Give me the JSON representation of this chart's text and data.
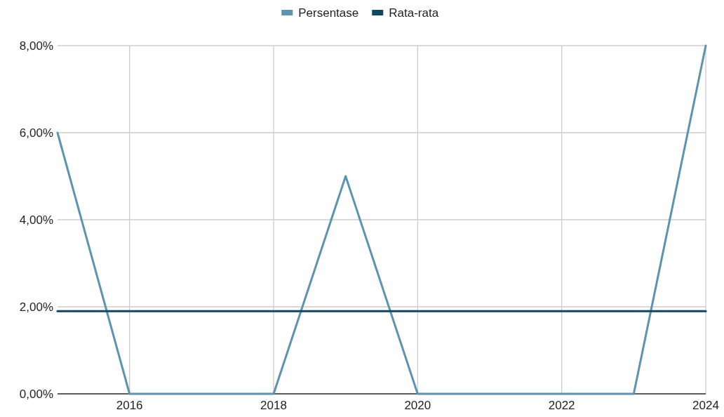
{
  "chart_data": {
    "type": "line",
    "x": [
      2015,
      2016,
      2017,
      2018,
      2019,
      2020,
      2021,
      2022,
      2023,
      2024
    ],
    "series": [
      {
        "name": "Persentase",
        "color": "#5b93b0",
        "values": [
          6,
          0,
          0,
          0,
          5,
          0,
          0,
          0,
          0,
          8
        ]
      },
      {
        "name": "Rata-rata",
        "color": "#0b4962",
        "values": [
          1.9,
          1.9,
          1.9,
          1.9,
          1.9,
          1.9,
          1.9,
          1.9,
          1.9,
          1.9
        ]
      }
    ],
    "xlim": [
      2015,
      2024
    ],
    "xticks": [
      2016,
      2018,
      2020,
      2022,
      2024
    ],
    "ylim": [
      0,
      8
    ],
    "yticks": [
      {
        "value": 0,
        "label": "0,00%"
      },
      {
        "value": 2,
        "label": "2,00%"
      },
      {
        "value": 4,
        "label": "4,00%"
      },
      {
        "value": 6,
        "label": "6,00%"
      },
      {
        "value": 8,
        "label": "8,00%"
      }
    ],
    "grid": true,
    "legend": "top",
    "marker": "none",
    "line_style": "solid"
  }
}
